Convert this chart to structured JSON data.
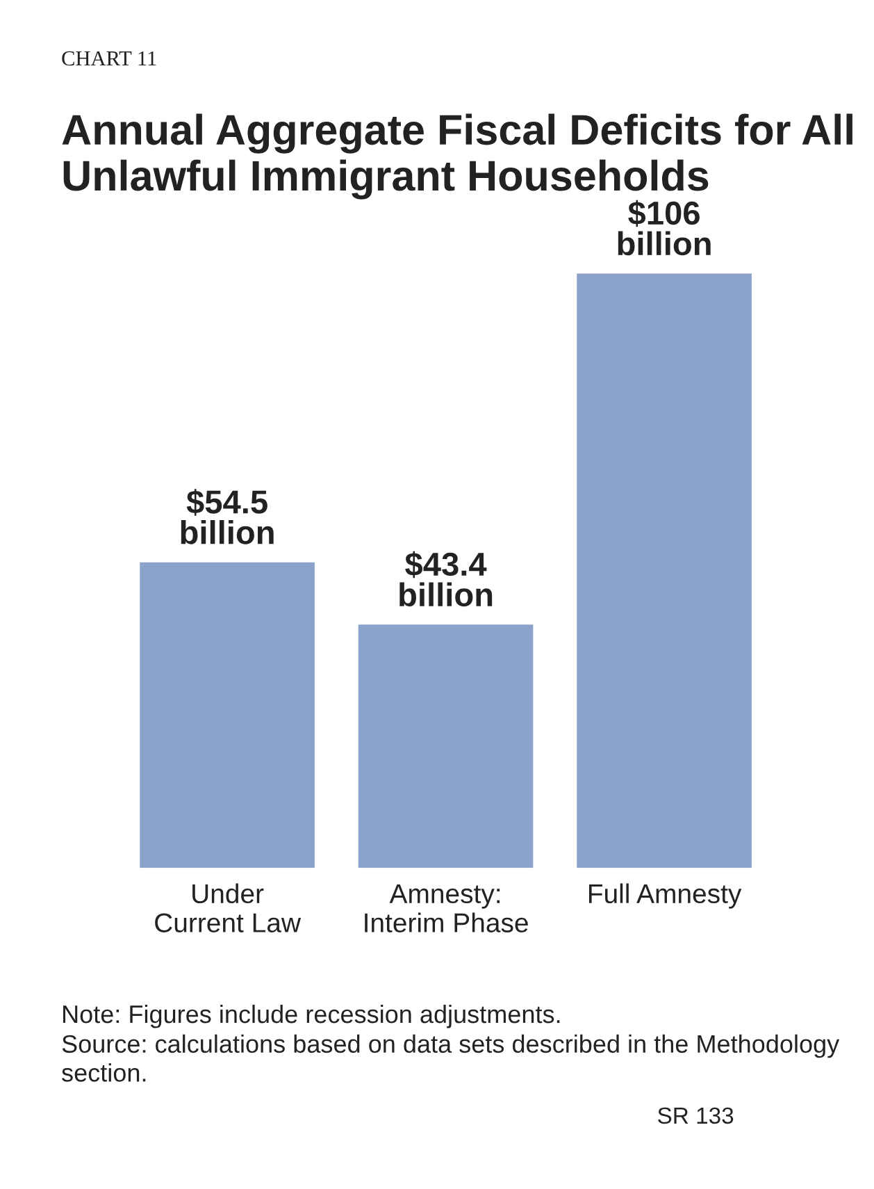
{
  "chart_data": {
    "type": "bar",
    "title": "Annual Aggregate Fiscal Deficits for All Unlawful Immigrant Households",
    "subtitle": "CHART 11",
    "categories": [
      "Under\nCurrent Law",
      "Amnesty:\nInterim Phase",
      "Full Amnesty"
    ],
    "values": [
      54500000000,
      43400000000,
      106000000000
    ],
    "color": "#8ba2cb",
    "value_labels": [
      "$54.5\nbillion",
      "$43.4\nbillion",
      "$106\nbillion"
    ],
    "annotations": [
      "Note: Figures include recession adjustments.",
      "Source: calculations based on data sets described in the Methodology section.",
      "SR 133"
    ]
  }
}
